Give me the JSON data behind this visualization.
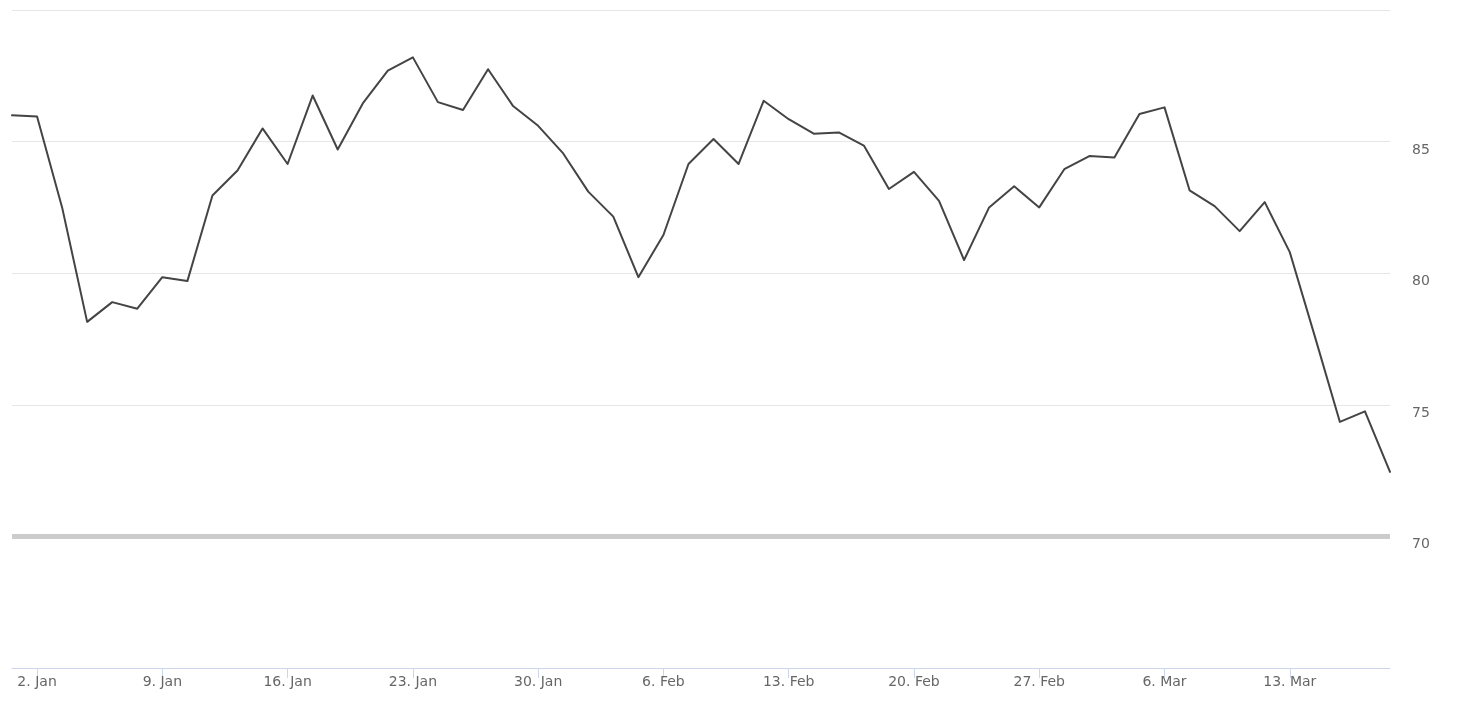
{
  "chart_data": {
    "type": "line",
    "categories": [
      null,
      "2. Jan",
      null,
      null,
      null,
      null,
      "9. Jan",
      null,
      null,
      null,
      null,
      "16. Jan",
      null,
      null,
      null,
      null,
      "23. Jan",
      null,
      null,
      null,
      null,
      "30. Jan",
      null,
      null,
      null,
      null,
      "6. Feb",
      null,
      null,
      null,
      null,
      "13. Feb",
      null,
      null,
      null,
      null,
      "20. Feb",
      null,
      null,
      null,
      null,
      "27. Feb",
      null,
      null,
      null,
      null,
      "6. Mar",
      null,
      null,
      null,
      null,
      "13. Mar",
      null,
      null,
      null,
      null
    ],
    "series": [
      {
        "color": "#444444",
        "values": [
          86.0,
          85.95,
          82.5,
          78.15,
          78.9,
          78.65,
          79.85,
          79.7,
          82.95,
          83.9,
          85.5,
          84.15,
          86.75,
          84.7,
          86.45,
          87.7,
          88.2,
          86.5,
          86.2,
          87.75,
          86.35,
          85.6,
          84.55,
          83.1,
          82.15,
          79.85,
          81.45,
          84.15,
          85.1,
          84.15,
          86.55,
          85.85,
          85.3,
          85.35,
          84.85,
          83.2,
          83.85,
          82.75,
          80.5,
          82.5,
          83.3,
          82.5,
          83.95,
          84.45,
          84.4,
          86.05,
          86.3,
          83.15,
          82.55,
          81.6,
          82.7,
          80.8,
          77.6,
          74.35,
          74.75,
          72.45
        ]
      }
    ],
    "ylim": [
      65,
      90
    ],
    "yticks": [
      70,
      75,
      80,
      85,
      {
        "value": 90,
        "label": null
      }
    ],
    "ref_lines": [
      {
        "axis": "y",
        "value": 70,
        "color": "#cccccc"
      }
    ],
    "grid": "y",
    "marker": "none",
    "line_style": "solid"
  }
}
